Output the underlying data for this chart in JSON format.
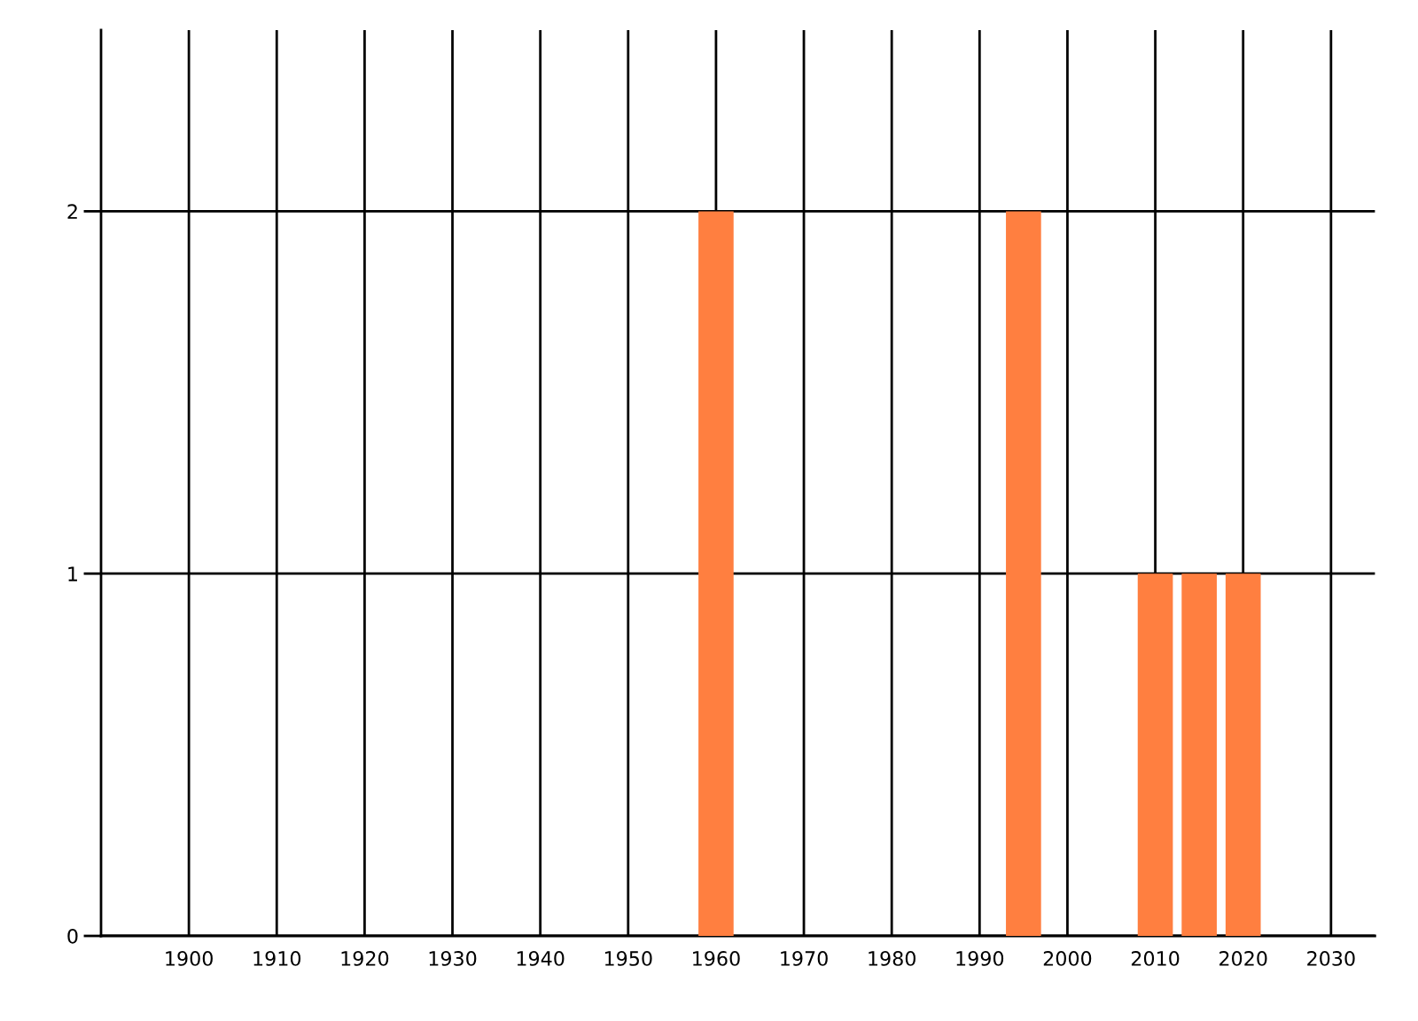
{
  "chart_data": {
    "type": "bar",
    "x": [
      1960,
      1995,
      2010,
      2015,
      2020
    ],
    "values": [
      2,
      2,
      1,
      1,
      1
    ],
    "color": "#ff7f40",
    "xlim": [
      1890,
      2035
    ],
    "xticks": [
      1900,
      1910,
      1920,
      1930,
      1940,
      1950,
      1960,
      1970,
      1980,
      1990,
      2000,
      2010,
      2020,
      2030
    ],
    "ylim": [
      0,
      2.5
    ],
    "yticks": [
      0,
      1,
      2
    ],
    "grid": true
  }
}
